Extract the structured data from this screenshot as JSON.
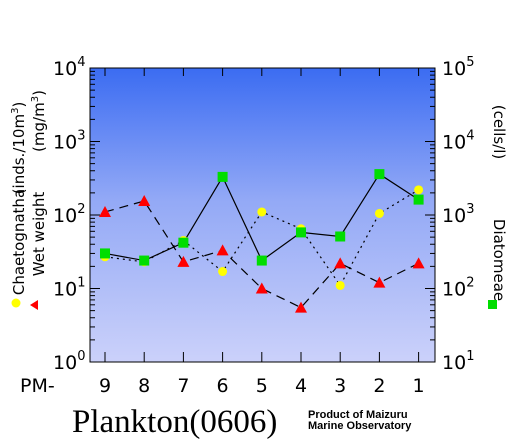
{
  "chart_data": {
    "type": "line",
    "title": "Plankton(0606)",
    "credit": [
      "Product of Maizuru",
      "Marine Observatory"
    ],
    "x_prefix": "PM-",
    "categories": [
      "9",
      "8",
      "7",
      "6",
      "5",
      "4",
      "3",
      "2",
      "1"
    ],
    "left_axis": {
      "scale": "log",
      "range": [
        1,
        10000
      ],
      "ticks": [
        {
          "base": "10",
          "exp": "0"
        },
        {
          "base": "10",
          "exp": "1"
        },
        {
          "base": "10",
          "exp": "2"
        },
        {
          "base": "10",
          "exp": "3"
        },
        {
          "base": "10",
          "exp": "4"
        }
      ],
      "label_lines": [
        "(inds./10m3)",
        "(mg/m3)"
      ]
    },
    "right_axis": {
      "scale": "log",
      "range": [
        10,
        100000
      ],
      "ticks": [
        {
          "base": "10",
          "exp": "1"
        },
        {
          "base": "10",
          "exp": "2"
        },
        {
          "base": "10",
          "exp": "3"
        },
        {
          "base": "10",
          "exp": "4"
        },
        {
          "base": "10",
          "exp": "5"
        }
      ],
      "label": "(cells/l)"
    },
    "series": [
      {
        "name": "Chaetognatha",
        "axis": "left",
        "marker": "circle",
        "line": "dotted",
        "color": "#ffff00",
        "values": [
          27,
          23,
          45,
          17,
          110,
          65,
          11,
          105,
          220
        ]
      },
      {
        "name": "Wet weight",
        "axis": "left",
        "marker": "triangle",
        "line": "dashed",
        "color": "#ff0000",
        "values": [
          110,
          155,
          23,
          33,
          10,
          5.5,
          22,
          12,
          22
        ]
      },
      {
        "name": "Diatomeae",
        "axis": "right",
        "marker": "square",
        "line": "solid",
        "color": "#00dd00",
        "values": [
          300,
          240,
          420,
          3300,
          240,
          580,
          510,
          3600,
          1620
        ]
      }
    ]
  }
}
